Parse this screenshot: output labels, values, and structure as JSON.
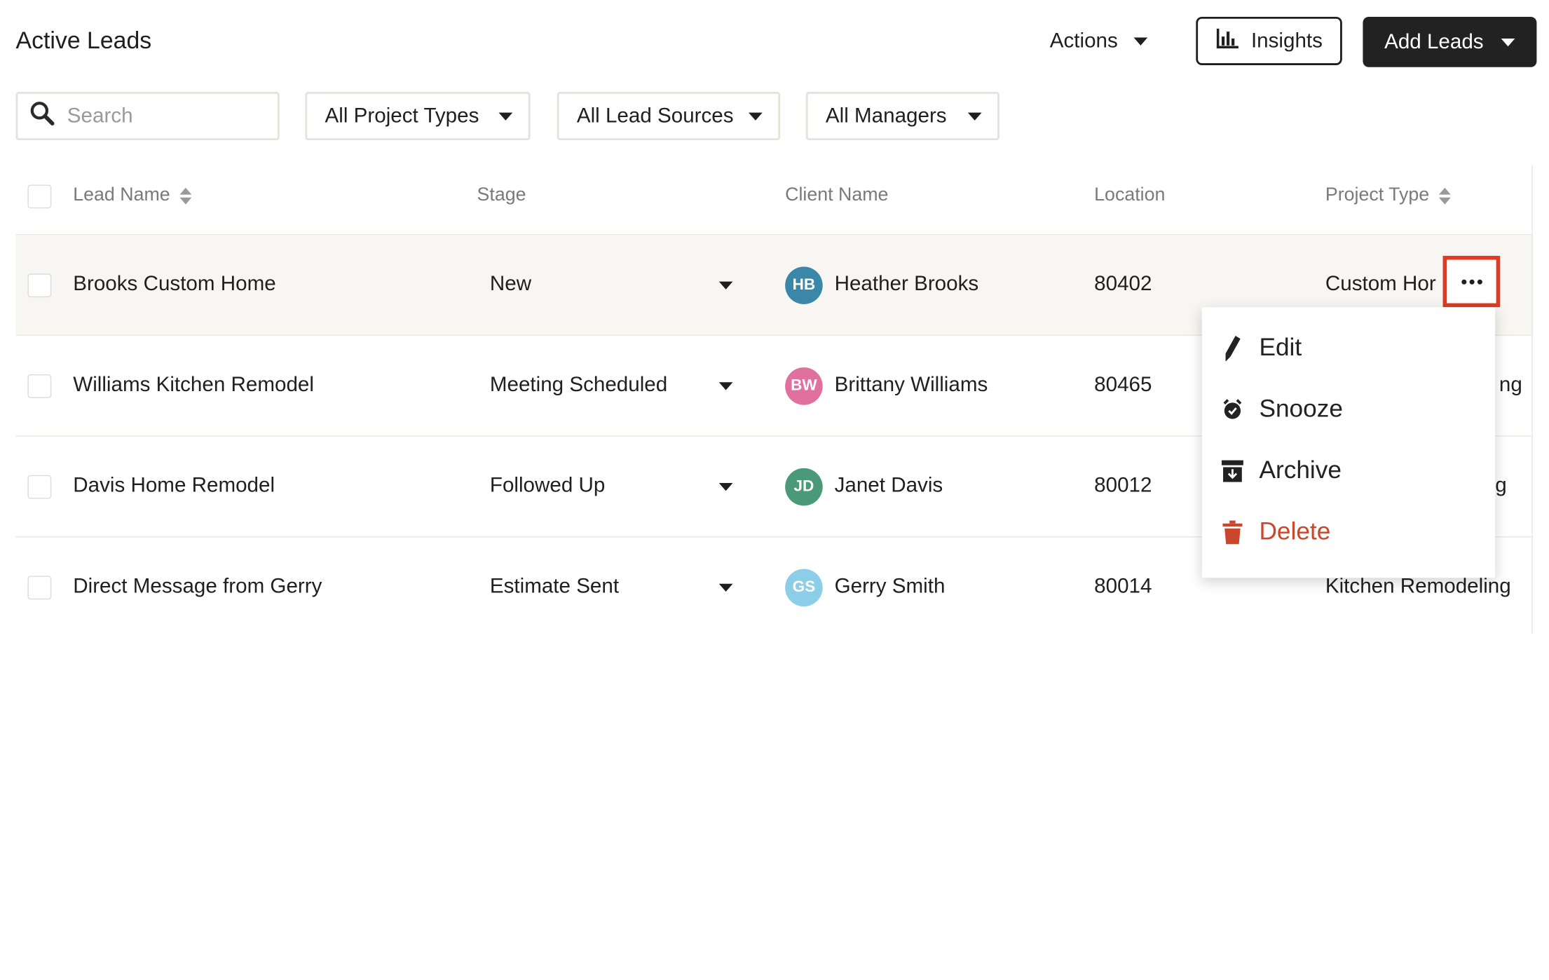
{
  "header": {
    "title": "Active Leads",
    "actions_label": "Actions",
    "insights_label": "Insights",
    "add_leads_label": "Add Leads"
  },
  "filters": {
    "search_placeholder": "Search",
    "project_types": "All Project Types",
    "lead_sources": "All Lead Sources",
    "managers": "All Managers"
  },
  "table": {
    "columns": {
      "lead_name": "Lead Name",
      "stage": "Stage",
      "client_name": "Client Name",
      "location": "Location",
      "project_type": "Project Type"
    },
    "rows": [
      {
        "lead_name": "Brooks Custom Home",
        "stage": "New",
        "client_initials": "HB",
        "client_name": "Heather Brooks",
        "avatar_color": "#3a87a8",
        "location": "80402",
        "project_type": "Custom Hor"
      },
      {
        "lead_name": "Williams Kitchen Remodel",
        "stage": "Meeting Scheduled",
        "client_initials": "BW",
        "client_name": "Brittany Williams",
        "avatar_color": "#e0719e",
        "location": "80465",
        "project_type": "ng"
      },
      {
        "lead_name": "Davis Home Remodel",
        "stage": "Followed Up",
        "client_initials": "JD",
        "client_name": "Janet Davis",
        "avatar_color": "#4a9a7a",
        "location": "80012",
        "project_type": "g"
      },
      {
        "lead_name": "Direct Message from Gerry",
        "stage": "Estimate Sent",
        "client_initials": "GS",
        "client_name": "Gerry Smith",
        "avatar_color": "#8ccde8",
        "location": "80014",
        "project_type": "Kitchen Remodeling"
      }
    ]
  },
  "row_menu": {
    "edit": "Edit",
    "snooze": "Snooze",
    "archive": "Archive",
    "delete": "Delete"
  },
  "colors": {
    "highlight": "#e03a22",
    "danger": "#c9472b",
    "primary_button": "#222222"
  }
}
